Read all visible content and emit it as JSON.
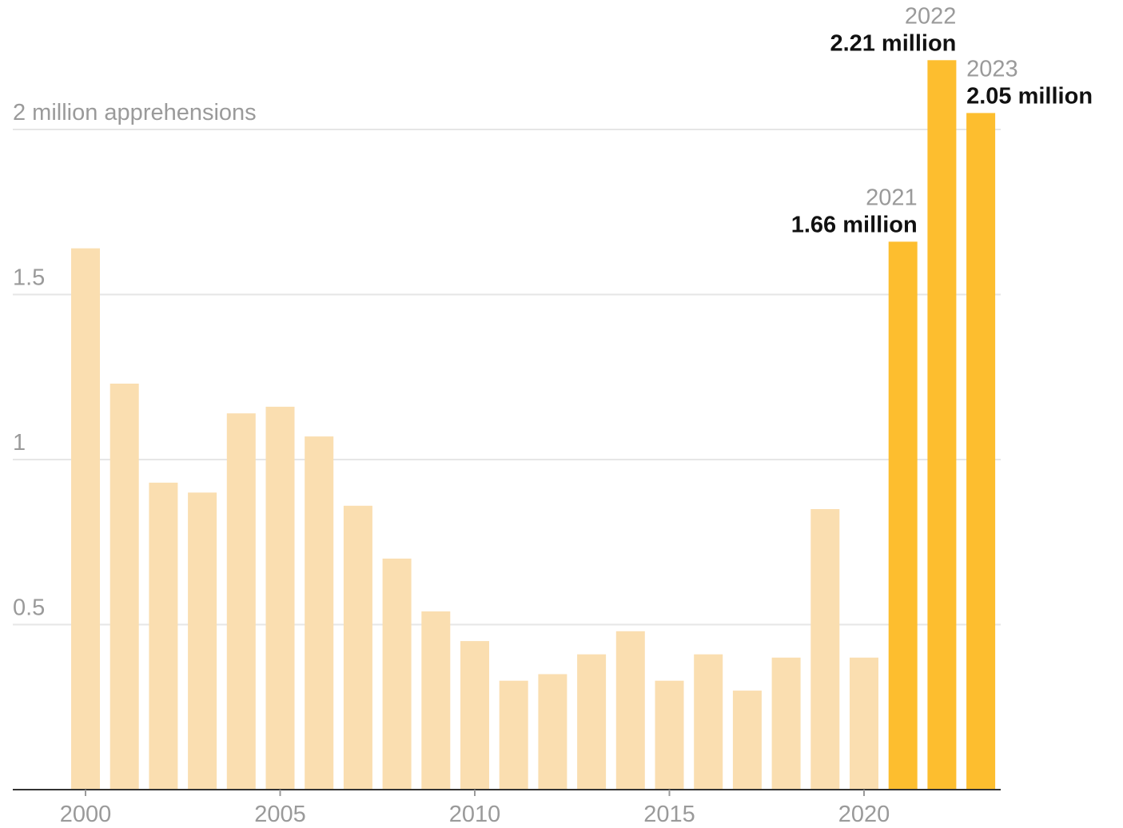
{
  "chart_data": {
    "type": "bar",
    "categories": [
      "2000",
      "2001",
      "2002",
      "2003",
      "2004",
      "2005",
      "2006",
      "2007",
      "2008",
      "2009",
      "2010",
      "2011",
      "2012",
      "2013",
      "2014",
      "2015",
      "2016",
      "2017",
      "2018",
      "2019",
      "2020",
      "2021",
      "2022",
      "2023"
    ],
    "values": [
      1.64,
      1.23,
      0.93,
      0.9,
      1.14,
      1.16,
      1.07,
      0.86,
      0.7,
      0.54,
      0.45,
      0.33,
      0.35,
      0.41,
      0.48,
      0.33,
      0.41,
      0.3,
      0.4,
      0.85,
      0.4,
      1.66,
      2.21,
      2.05
    ],
    "highlighted": [
      "2021",
      "2022",
      "2023"
    ],
    "ylim": [
      0,
      2.3
    ],
    "yticks": [
      {
        "value": 0.5,
        "label": "0.5"
      },
      {
        "value": 1,
        "label": "1"
      },
      {
        "value": 1.5,
        "label": "1.5"
      },
      {
        "value": 2,
        "label": "2 million apprehensions"
      }
    ],
    "xticks": [
      "2000",
      "2005",
      "2010",
      "2015",
      "2020"
    ],
    "annotations": [
      {
        "category": "2021",
        "year": "2021",
        "value": "1.66 million",
        "align": "end"
      },
      {
        "category": "2022",
        "year": "2022",
        "value": "2.21 million",
        "align": "end"
      },
      {
        "category": "2023",
        "year": "2023",
        "value": "2.05 million",
        "align": "start"
      }
    ],
    "grid": true,
    "colors": {
      "bar": "#fadeb0",
      "bar_highlight": "#fdbe2f",
      "grid": "#e6e6e6",
      "axis_text": "#9a9a9a",
      "label_text": "#111111"
    }
  }
}
